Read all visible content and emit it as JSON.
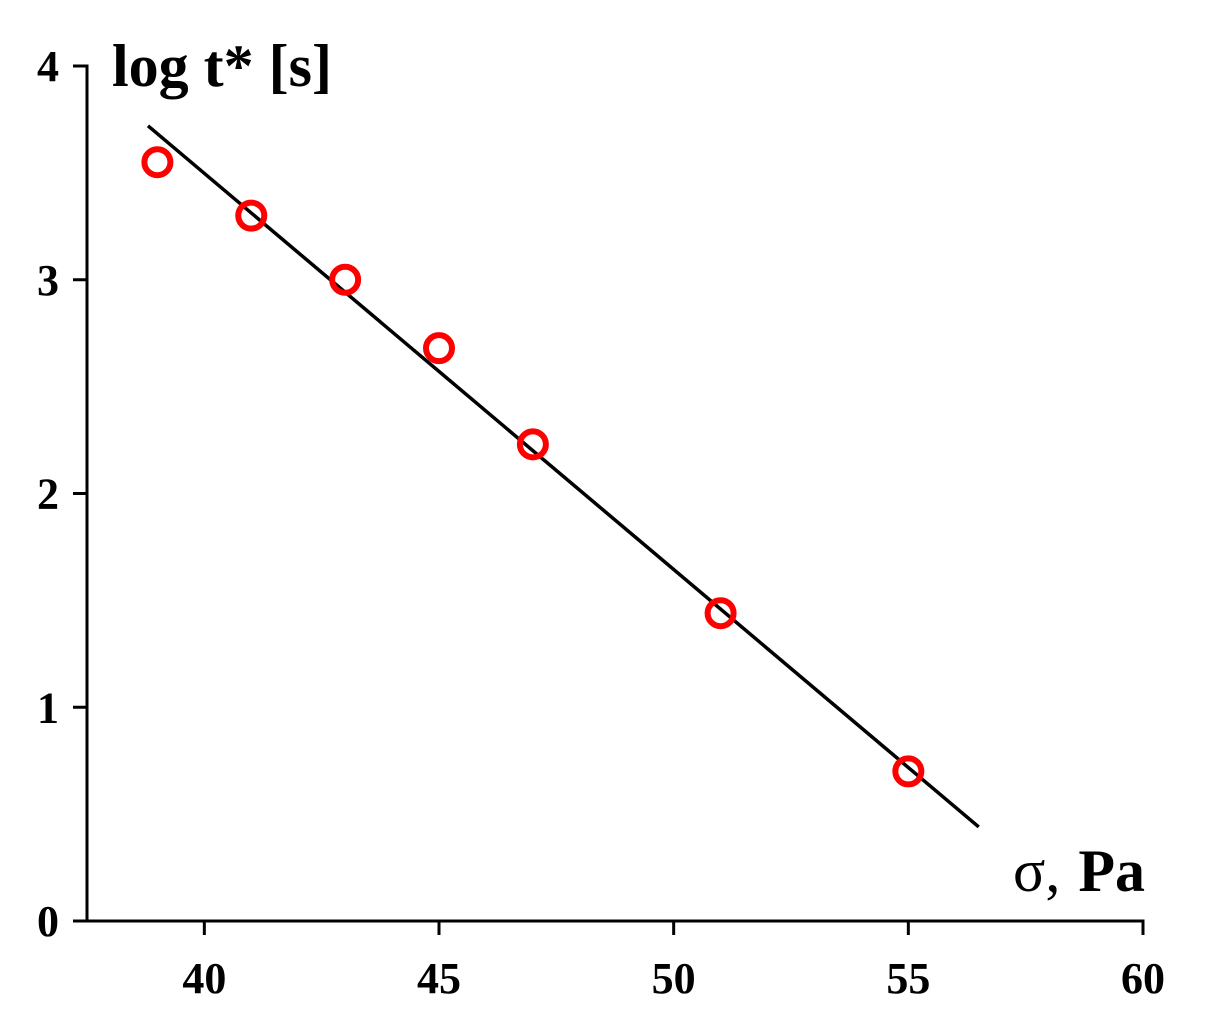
{
  "chart_data": {
    "type": "scatter",
    "title": "",
    "ylabel": "log t* [s]",
    "xlabel_symbol": "σ,",
    "xlabel_unit": "Pa",
    "xlim": [
      37.5,
      60
    ],
    "ylim": [
      0,
      4
    ],
    "x_ticks": [
      40,
      45,
      50,
      55,
      60
    ],
    "y_ticks": [
      0,
      1,
      2,
      3,
      4
    ],
    "grid": false,
    "colors": {
      "points": "#ff0000",
      "fit_line": "#000000",
      "axes": "#000000"
    },
    "series": [
      {
        "type": "scatter",
        "marker": "open-circle",
        "points": [
          {
            "x": 39,
            "y": 3.55
          },
          {
            "x": 41,
            "y": 3.3
          },
          {
            "x": 43,
            "y": 3.0
          },
          {
            "x": 45,
            "y": 2.68
          },
          {
            "x": 47,
            "y": 2.23
          },
          {
            "x": 51,
            "y": 1.44
          },
          {
            "x": 55,
            "y": 0.7
          }
        ]
      },
      {
        "type": "line",
        "points": [
          {
            "x": 38.8,
            "y": 3.72
          },
          {
            "x": 56.5,
            "y": 0.44
          }
        ]
      }
    ]
  }
}
